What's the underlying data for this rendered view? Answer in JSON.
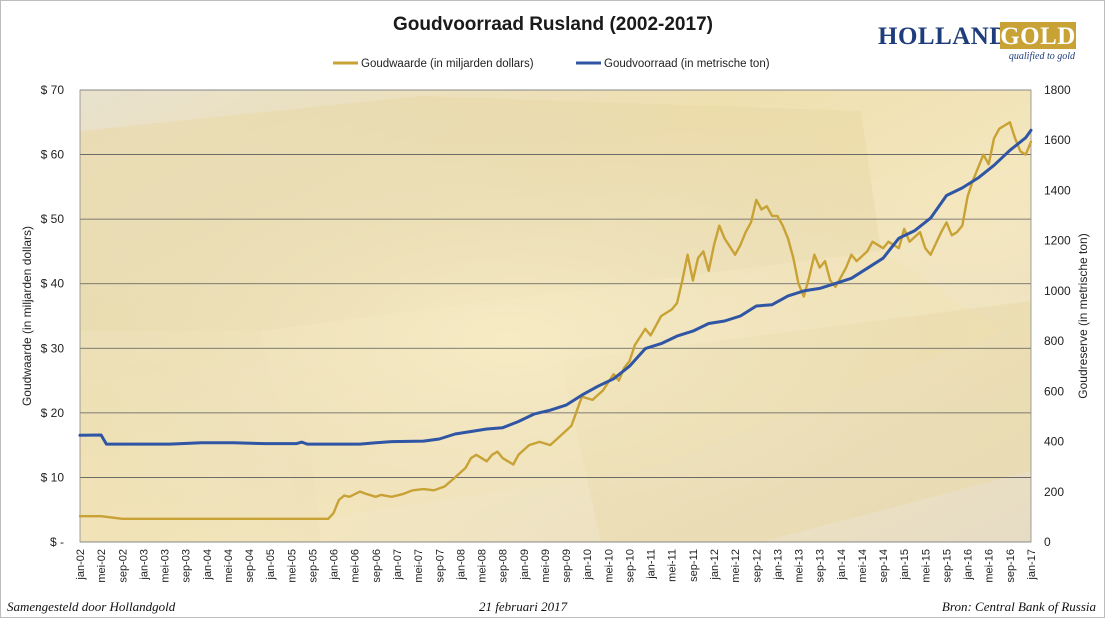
{
  "colors": {
    "gold": "#c9a235",
    "blue": "#2f55a4",
    "grid": "#5a5a5a"
  },
  "logo": {
    "word1": "HOLLAND",
    "word2": "GOLD",
    "tagline": "qualified to gold"
  },
  "footer": {
    "left": "Samengesteld door Hollandgold",
    "center": "21 februari 2017",
    "right": "Bron: Central Bank of Russia"
  },
  "chart_data": {
    "type": "line",
    "title": "Goudvoorraad Rusland (2002-2017)",
    "ylabel": "Goudwaarde  (in miljarden dollars)",
    "y2label": "Goudreserve  (in metrische ton)",
    "ylim": [
      0,
      70
    ],
    "y2lim": [
      0,
      1800
    ],
    "y_ticks": [
      "$ -",
      "$ 10",
      "$ 20",
      "$ 30",
      "$ 40",
      "$ 50",
      "$ 60",
      "$ 70"
    ],
    "y2_ticks": [
      "0",
      "200",
      "400",
      "600",
      "800",
      "1000",
      "1200",
      "1400",
      "1600",
      "1800"
    ],
    "x_range": [
      "2002-01",
      "2017-01"
    ],
    "x_ticks": [
      "jan-02",
      "mei-02",
      "sep-02",
      "jan-03",
      "mei-03",
      "sep-03",
      "jan-04",
      "mei-04",
      "sep-04",
      "jan-05",
      "mei-05",
      "sep-05",
      "jan-06",
      "mei-06",
      "sep-06",
      "jan-07",
      "mei-07",
      "sep-07",
      "jan-08",
      "mei-08",
      "sep-08",
      "jan-09",
      "mei-09",
      "sep-09",
      "jan-10",
      "mei-10",
      "sep-10",
      "jan-11",
      "mei-11",
      "sep-11",
      "jan-12",
      "mei-12",
      "sep-12",
      "jan-13",
      "mei-13",
      "sep-13",
      "jan-14",
      "mei-14",
      "sep-14",
      "jan-15",
      "mei-15",
      "sep-15",
      "jan-16",
      "mei-16",
      "sep-16",
      "jan-17"
    ],
    "grid": true,
    "legend_position": "top-center",
    "series": [
      {
        "name": "Goudwaarde (in miljarden dollars)",
        "axis": "left",
        "color": "#c9a235",
        "points": [
          [
            "2002-01",
            4.0
          ],
          [
            "2002-05",
            4.0
          ],
          [
            "2002-07",
            3.8
          ],
          [
            "2002-09",
            3.6
          ],
          [
            "2003-06",
            3.6
          ],
          [
            "2004-01",
            3.6
          ],
          [
            "2005-01",
            3.6
          ],
          [
            "2005-12",
            3.6
          ],
          [
            "2006-01",
            4.5
          ],
          [
            "2006-02",
            6.5
          ],
          [
            "2006-03",
            7.2
          ],
          [
            "2006-04",
            7.0
          ],
          [
            "2006-06",
            7.8
          ],
          [
            "2006-07",
            7.5
          ],
          [
            "2006-09",
            7.0
          ],
          [
            "2006-10",
            7.3
          ],
          [
            "2006-12",
            7.0
          ],
          [
            "2007-02",
            7.4
          ],
          [
            "2007-04",
            8.0
          ],
          [
            "2007-06",
            8.2
          ],
          [
            "2007-08",
            8.0
          ],
          [
            "2007-10",
            8.6
          ],
          [
            "2007-12",
            10.0
          ],
          [
            "2008-02",
            11.5
          ],
          [
            "2008-03",
            13.0
          ],
          [
            "2008-04",
            13.5
          ],
          [
            "2008-06",
            12.5
          ],
          [
            "2008-07",
            13.5
          ],
          [
            "2008-08",
            14.0
          ],
          [
            "2008-09",
            13.0
          ],
          [
            "2008-10",
            12.5
          ],
          [
            "2008-11",
            12.0
          ],
          [
            "2008-12",
            13.5
          ],
          [
            "2009-02",
            15.0
          ],
          [
            "2009-04",
            15.5
          ],
          [
            "2009-06",
            15.0
          ],
          [
            "2009-08",
            16.5
          ],
          [
            "2009-10",
            18.0
          ],
          [
            "2009-12",
            22.5
          ],
          [
            "2010-02",
            22.0
          ],
          [
            "2010-04",
            23.5
          ],
          [
            "2010-06",
            26.0
          ],
          [
            "2010-07",
            25.0
          ],
          [
            "2010-08",
            27.0
          ],
          [
            "2010-09",
            28.0
          ],
          [
            "2010-10",
            30.5
          ],
          [
            "2010-12",
            33.0
          ],
          [
            "2011-01",
            32.0
          ],
          [
            "2011-02",
            33.5
          ],
          [
            "2011-03",
            35.0
          ],
          [
            "2011-05",
            36.0
          ],
          [
            "2011-06",
            37.0
          ],
          [
            "2011-07",
            40.5
          ],
          [
            "2011-08",
            44.5
          ],
          [
            "2011-09",
            40.5
          ],
          [
            "2011-10",
            44.0
          ],
          [
            "2011-11",
            45.0
          ],
          [
            "2011-12",
            42.0
          ],
          [
            "2012-01",
            46.0
          ],
          [
            "2012-02",
            49.0
          ],
          [
            "2012-03",
            47.0
          ],
          [
            "2012-05",
            44.5
          ],
          [
            "2012-06",
            46.0
          ],
          [
            "2012-07",
            48.0
          ],
          [
            "2012-08",
            49.5
          ],
          [
            "2012-09",
            53.0
          ],
          [
            "2012-10",
            51.5
          ],
          [
            "2012-11",
            52.0
          ],
          [
            "2012-12",
            50.5
          ],
          [
            "2013-01",
            50.5
          ],
          [
            "2013-02",
            49.0
          ],
          [
            "2013-03",
            47.0
          ],
          [
            "2013-04",
            44.0
          ],
          [
            "2013-05",
            40.0
          ],
          [
            "2013-06",
            38.0
          ],
          [
            "2013-07",
            41.0
          ],
          [
            "2013-08",
            44.5
          ],
          [
            "2013-09",
            42.5
          ],
          [
            "2013-10",
            43.5
          ],
          [
            "2013-11",
            40.5
          ],
          [
            "2013-12",
            39.5
          ],
          [
            "2014-01",
            41.0
          ],
          [
            "2014-02",
            42.5
          ],
          [
            "2014-03",
            44.5
          ],
          [
            "2014-04",
            43.5
          ],
          [
            "2014-06",
            45.0
          ],
          [
            "2014-07",
            46.5
          ],
          [
            "2014-09",
            45.5
          ],
          [
            "2014-10",
            46.5
          ],
          [
            "2014-12",
            45.5
          ],
          [
            "2015-01",
            48.5
          ],
          [
            "2015-02",
            46.5
          ],
          [
            "2015-04",
            48.0
          ],
          [
            "2015-05",
            45.5
          ],
          [
            "2015-06",
            44.5
          ],
          [
            "2015-08",
            48.0
          ],
          [
            "2015-09",
            49.5
          ],
          [
            "2015-10",
            47.5
          ],
          [
            "2015-11",
            48.0
          ],
          [
            "2015-12",
            49.0
          ],
          [
            "2016-01",
            53.5
          ],
          [
            "2016-02",
            56.0
          ],
          [
            "2016-03",
            58.0
          ],
          [
            "2016-04",
            60.0
          ],
          [
            "2016-05",
            58.5
          ],
          [
            "2016-06",
            62.5
          ],
          [
            "2016-07",
            64.0
          ],
          [
            "2016-08",
            64.5
          ],
          [
            "2016-09",
            65.0
          ],
          [
            "2016-10",
            62.5
          ],
          [
            "2016-11",
            60.5
          ],
          [
            "2016-12",
            60.0
          ],
          [
            "2017-01",
            62.0
          ]
        ]
      },
      {
        "name": "Goudvoorraad (in metrische ton)",
        "axis": "right",
        "color": "#2f55a4",
        "points": [
          [
            "2002-01",
            425
          ],
          [
            "2002-05",
            426
          ],
          [
            "2002-06",
            390
          ],
          [
            "2002-12",
            390
          ],
          [
            "2003-06",
            390
          ],
          [
            "2003-12",
            395
          ],
          [
            "2004-06",
            395
          ],
          [
            "2004-12",
            392
          ],
          [
            "2005-06",
            392
          ],
          [
            "2005-07",
            398
          ],
          [
            "2005-08",
            390
          ],
          [
            "2005-12",
            390
          ],
          [
            "2006-06",
            390
          ],
          [
            "2006-09",
            395
          ],
          [
            "2006-12",
            400
          ],
          [
            "2007-06",
            402
          ],
          [
            "2007-09",
            410
          ],
          [
            "2007-12",
            430
          ],
          [
            "2008-03",
            440
          ],
          [
            "2008-06",
            450
          ],
          [
            "2008-09",
            455
          ],
          [
            "2008-12",
            480
          ],
          [
            "2009-03",
            510
          ],
          [
            "2009-06",
            525
          ],
          [
            "2009-09",
            545
          ],
          [
            "2009-12",
            585
          ],
          [
            "2010-03",
            620
          ],
          [
            "2010-06",
            650
          ],
          [
            "2010-09",
            700
          ],
          [
            "2010-12",
            770
          ],
          [
            "2011-03",
            790
          ],
          [
            "2011-06",
            820
          ],
          [
            "2011-09",
            840
          ],
          [
            "2011-12",
            870
          ],
          [
            "2012-03",
            880
          ],
          [
            "2012-06",
            900
          ],
          [
            "2012-09",
            940
          ],
          [
            "2012-12",
            945
          ],
          [
            "2013-03",
            980
          ],
          [
            "2013-06",
            1000
          ],
          [
            "2013-09",
            1010
          ],
          [
            "2013-12",
            1030
          ],
          [
            "2014-03",
            1050
          ],
          [
            "2014-06",
            1090
          ],
          [
            "2014-09",
            1130
          ],
          [
            "2014-12",
            1210
          ],
          [
            "2015-03",
            1240
          ],
          [
            "2015-06",
            1290
          ],
          [
            "2015-09",
            1380
          ],
          [
            "2015-12",
            1410
          ],
          [
            "2016-03",
            1450
          ],
          [
            "2016-06",
            1500
          ],
          [
            "2016-09",
            1560
          ],
          [
            "2016-12",
            1610
          ],
          [
            "2017-01",
            1640
          ]
        ]
      }
    ]
  }
}
